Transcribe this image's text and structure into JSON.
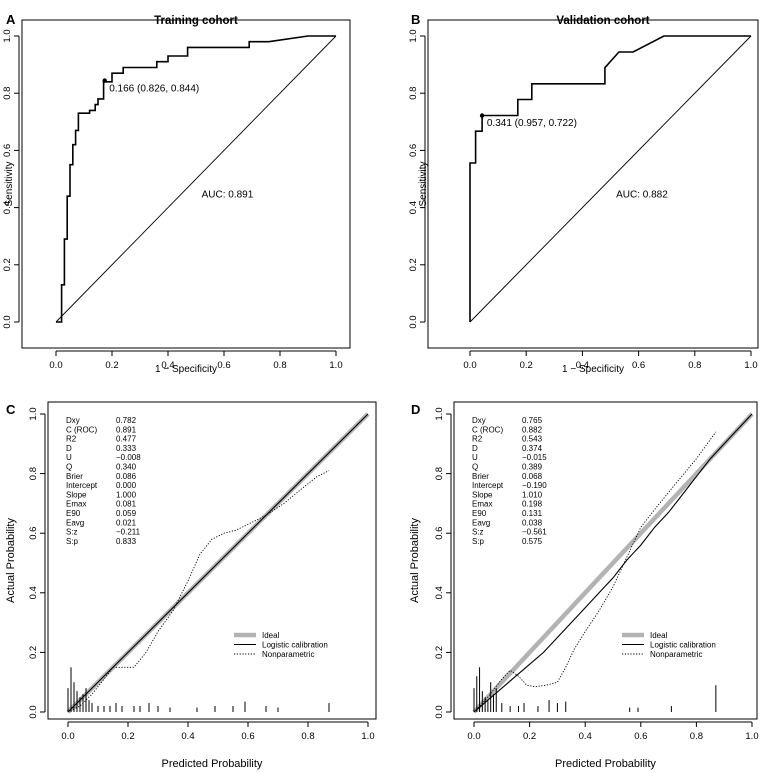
{
  "chart_data": [
    {
      "type": "line",
      "subtype": "roc",
      "letter": "A",
      "title": "Training cohort",
      "xlabel": "1 − Specificity",
      "ylabel": "Sensitivity",
      "xlim": [
        0,
        1
      ],
      "ylim": [
        0,
        1
      ],
      "xticks": [
        "0.0",
        "0.2",
        "0.4",
        "0.6",
        "0.8",
        "1.0"
      ],
      "yticks": [
        "0.0",
        "0.2",
        "0.4",
        "0.6",
        "0.8",
        "1.0"
      ],
      "auc_label": "AUC: 0.891",
      "auc_at": [
        0.52,
        0.45
      ],
      "threshold_label": "0.166 (0.826, 0.844)",
      "threshold_point": [
        0.174,
        0.844
      ],
      "threshold_label_at": [
        0.19,
        0.82
      ],
      "curve": [
        [
          0,
          0
        ],
        [
          0.02,
          0
        ],
        [
          0.02,
          0.13
        ],
        [
          0.03,
          0.13
        ],
        [
          0.03,
          0.29
        ],
        [
          0.04,
          0.29
        ],
        [
          0.04,
          0.44
        ],
        [
          0.05,
          0.44
        ],
        [
          0.05,
          0.55
        ],
        [
          0.06,
          0.55
        ],
        [
          0.06,
          0.62
        ],
        [
          0.07,
          0.62
        ],
        [
          0.07,
          0.67
        ],
        [
          0.08,
          0.67
        ],
        [
          0.08,
          0.73
        ],
        [
          0.12,
          0.73
        ],
        [
          0.12,
          0.74
        ],
        [
          0.14,
          0.74
        ],
        [
          0.14,
          0.76
        ],
        [
          0.15,
          0.76
        ],
        [
          0.15,
          0.78
        ],
        [
          0.17,
          0.78
        ],
        [
          0.17,
          0.84
        ],
        [
          0.2,
          0.84
        ],
        [
          0.2,
          0.87
        ],
        [
          0.24,
          0.87
        ],
        [
          0.24,
          0.89
        ],
        [
          0.36,
          0.89
        ],
        [
          0.36,
          0.91
        ],
        [
          0.4,
          0.91
        ],
        [
          0.4,
          0.93
        ],
        [
          0.47,
          0.93
        ],
        [
          0.47,
          0.96
        ],
        [
          0.69,
          0.96
        ],
        [
          0.69,
          0.98
        ],
        [
          0.76,
          0.98
        ],
        [
          0.76,
          0.98
        ],
        [
          0.9,
          1.0
        ],
        [
          1.0,
          1.0
        ]
      ]
    },
    {
      "type": "line",
      "subtype": "roc",
      "letter": "B",
      "title": "Validation cohort",
      "xlabel": "1 − Specificity",
      "ylabel": "Sensitivity",
      "xlim": [
        0,
        1
      ],
      "ylim": [
        0,
        1
      ],
      "xticks": [
        "0.0",
        "0.2",
        "0.4",
        "0.6",
        "0.8",
        "1.0"
      ],
      "yticks": [
        "0.0",
        "0.2",
        "0.4",
        "0.6",
        "0.8",
        "1.0"
      ],
      "auc_label": "AUC: 0.882",
      "auc_at": [
        0.52,
        0.45
      ],
      "threshold_label": "0.341 (0.957, 0.722)",
      "threshold_point": [
        0.043,
        0.722
      ],
      "threshold_label_at": [
        0.06,
        0.7
      ],
      "curve": [
        [
          0,
          0
        ],
        [
          0,
          0.556
        ],
        [
          0.02,
          0.556
        ],
        [
          0.02,
          0.667
        ],
        [
          0.043,
          0.667
        ],
        [
          0.043,
          0.722
        ],
        [
          0.17,
          0.722
        ],
        [
          0.17,
          0.778
        ],
        [
          0.2,
          0.778
        ],
        [
          0.2,
          0.778
        ],
        [
          0.22,
          0.778
        ],
        [
          0.22,
          0.833
        ],
        [
          0.48,
          0.833
        ],
        [
          0.48,
          0.889
        ],
        [
          0.53,
          0.944
        ],
        [
          0.58,
          0.944
        ],
        [
          0.69,
          1.0
        ],
        [
          1.0,
          1.0
        ]
      ]
    },
    {
      "type": "line",
      "subtype": "calibration",
      "letter": "C",
      "xlabel": "Predicted Probability",
      "ylabel": "Actual Probability",
      "xlim": [
        0,
        1
      ],
      "ylim": [
        0,
        1
      ],
      "xticks": [
        "0.0",
        "0.2",
        "0.4",
        "0.6",
        "0.8",
        "1.0"
      ],
      "yticks": [
        "0.0",
        "0.2",
        "0.4",
        "0.6",
        "0.8",
        "1.0"
      ],
      "stats_labels": [
        "Dxy",
        "C (ROC)",
        "R2",
        "D",
        "U",
        "Q",
        "Brier",
        "Intercept",
        "Slope",
        "Emax",
        "E90",
        "Eavg",
        "S:z",
        "S:p"
      ],
      "stats_values": [
        "0.782",
        "0.891",
        "0.477",
        "0.333",
        "−0.008",
        "0.340",
        "0.086",
        "0.000",
        "1.000",
        "0.081",
        "0.059",
        "0.021",
        "−0.211",
        "0.833"
      ],
      "legend": [
        "Ideal",
        "Logistic calibration",
        "Nonparametric"
      ],
      "logistic": [
        [
          0,
          0
        ],
        [
          1,
          1
        ]
      ],
      "nonparametric": [
        [
          0,
          0
        ],
        [
          0.04,
          0.02
        ],
        [
          0.08,
          0.06
        ],
        [
          0.12,
          0.11
        ],
        [
          0.15,
          0.15
        ],
        [
          0.18,
          0.15
        ],
        [
          0.22,
          0.15
        ],
        [
          0.26,
          0.2
        ],
        [
          0.3,
          0.27
        ],
        [
          0.35,
          0.34
        ],
        [
          0.4,
          0.44
        ],
        [
          0.44,
          0.53
        ],
        [
          0.48,
          0.58
        ],
        [
          0.52,
          0.6
        ],
        [
          0.56,
          0.61
        ],
        [
          0.6,
          0.63
        ],
        [
          0.66,
          0.66
        ],
        [
          0.72,
          0.7
        ],
        [
          0.78,
          0.75
        ],
        [
          0.83,
          0.79
        ],
        [
          0.87,
          0.81
        ]
      ],
      "rug_x": [
        0.0,
        0.01,
        0.02,
        0.03,
        0.04,
        0.05,
        0.06,
        0.07,
        0.08,
        0.1,
        0.12,
        0.14,
        0.16,
        0.18,
        0.22,
        0.24,
        0.27,
        0.3,
        0.34,
        0.43,
        0.49,
        0.55,
        0.59,
        0.66,
        0.7,
        0.87
      ],
      "rug_h": [
        0.08,
        0.15,
        0.1,
        0.07,
        0.05,
        0.06,
        0.08,
        0.04,
        0.03,
        0.02,
        0.02,
        0.02,
        0.03,
        0.02,
        0.02,
        0.02,
        0.03,
        0.02,
        0.015,
        0.015,
        0.02,
        0.02,
        0.035,
        0.02,
        0.015,
        0.03
      ]
    },
    {
      "type": "line",
      "subtype": "calibration",
      "letter": "D",
      "xlabel": "Predicted Probability",
      "ylabel": "Actual Probability",
      "xlim": [
        0,
        1
      ],
      "ylim": [
        0,
        1
      ],
      "xticks": [
        "0.0",
        "0.2",
        "0.4",
        "0.6",
        "0.8",
        "1.0"
      ],
      "yticks": [
        "0.0",
        "0.2",
        "0.4",
        "0.6",
        "0.8",
        "1.0"
      ],
      "stats_labels": [
        "Dxy",
        "C (ROC)",
        "R2",
        "D",
        "U",
        "Q",
        "Brier",
        "Intercept",
        "Slope",
        "Emax",
        "E90",
        "Eavg",
        "S:z",
        "S:p"
      ],
      "stats_values": [
        "0.765",
        "0.882",
        "0.543",
        "0.374",
        "−0.015",
        "0.389",
        "0.068",
        "−0.190",
        "1.010",
        "0.198",
        "0.131",
        "0.038",
        "−0.561",
        "0.575"
      ],
      "legend": [
        "Ideal",
        "Logistic calibration",
        "Nonparametric"
      ],
      "logistic": [
        [
          0,
          0
        ],
        [
          0.05,
          0.04
        ],
        [
          0.1,
          0.08
        ],
        [
          0.15,
          0.12
        ],
        [
          0.2,
          0.16
        ],
        [
          0.25,
          0.2
        ],
        [
          0.3,
          0.25
        ],
        [
          0.35,
          0.3
        ],
        [
          0.4,
          0.35
        ],
        [
          0.45,
          0.4
        ],
        [
          0.5,
          0.45
        ],
        [
          0.55,
          0.51
        ],
        [
          0.6,
          0.56
        ],
        [
          0.65,
          0.62
        ],
        [
          0.7,
          0.67
        ],
        [
          0.75,
          0.73
        ],
        [
          0.8,
          0.79
        ],
        [
          0.85,
          0.85
        ],
        [
          0.9,
          0.9
        ],
        [
          0.95,
          0.95
        ],
        [
          1.0,
          1.0
        ]
      ],
      "nonparametric": [
        [
          0,
          0
        ],
        [
          0.05,
          0.05
        ],
        [
          0.1,
          0.11
        ],
        [
          0.13,
          0.14
        ],
        [
          0.16,
          0.12
        ],
        [
          0.19,
          0.09
        ],
        [
          0.22,
          0.085
        ],
        [
          0.26,
          0.09
        ],
        [
          0.3,
          0.1
        ],
        [
          0.33,
          0.15
        ],
        [
          0.36,
          0.21
        ],
        [
          0.4,
          0.27
        ],
        [
          0.45,
          0.34
        ],
        [
          0.5,
          0.42
        ],
        [
          0.55,
          0.52
        ],
        [
          0.6,
          0.62
        ],
        [
          0.65,
          0.68
        ],
        [
          0.72,
          0.76
        ],
        [
          0.8,
          0.85
        ],
        [
          0.87,
          0.94
        ]
      ],
      "rug_x": [
        0.0,
        0.01,
        0.02,
        0.03,
        0.04,
        0.05,
        0.06,
        0.07,
        0.08,
        0.1,
        0.13,
        0.16,
        0.18,
        0.23,
        0.27,
        0.3,
        0.33,
        0.56,
        0.59,
        0.71,
        0.87
      ],
      "rug_h": [
        0.08,
        0.12,
        0.15,
        0.07,
        0.05,
        0.04,
        0.1,
        0.06,
        0.08,
        0.03,
        0.02,
        0.02,
        0.03,
        0.02,
        0.04,
        0.03,
        0.035,
        0.015,
        0.015,
        0.02,
        0.09
      ]
    }
  ]
}
